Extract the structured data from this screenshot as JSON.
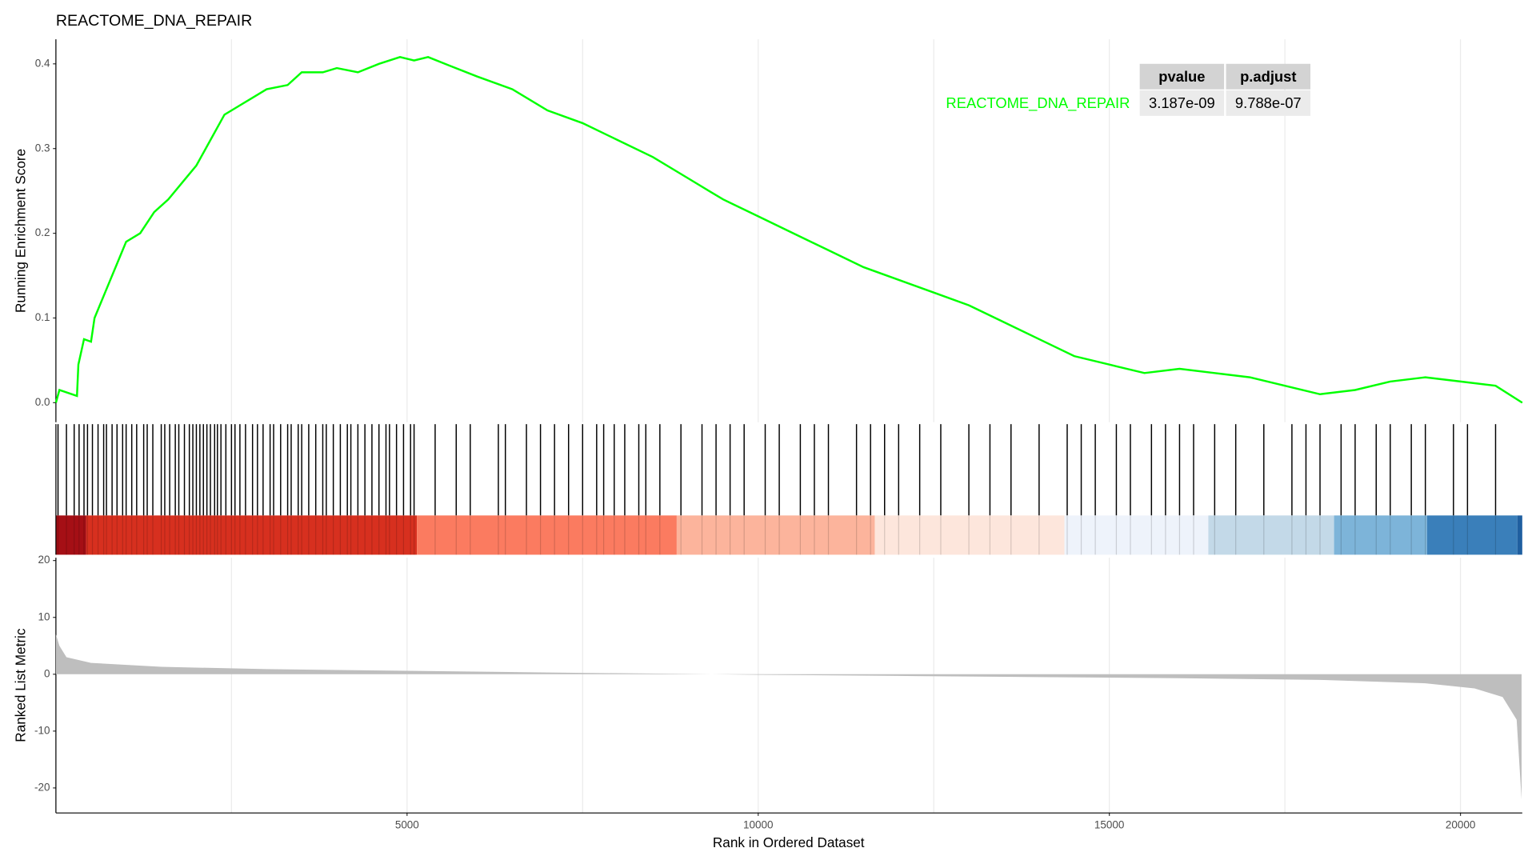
{
  "chart_data": [
    {
      "type": "line",
      "title": "REACTOME_DNA_REPAIR",
      "y_label": "Running Enrichment Score",
      "x": [
        0,
        50,
        300,
        320,
        400,
        500,
        550,
        700,
        900,
        1000,
        1200,
        1400,
        1600,
        1800,
        2000,
        2200,
        2400,
        2600,
        2800,
        3000,
        3300,
        3500,
        3800,
        4000,
        4300,
        4600,
        4900,
        5100,
        5300,
        5600,
        6000,
        6500,
        7000,
        7500,
        8000,
        8500,
        9000,
        9500,
        10000,
        10500,
        11000,
        11500,
        12000,
        12500,
        13000,
        13500,
        14000,
        14500,
        15000,
        15500,
        16000,
        16500,
        17000,
        17500,
        18000,
        18500,
        19000,
        19500,
        20000,
        20500,
        20880
      ],
      "series": [
        {
          "name": "REACTOME_DNA_REPAIR",
          "color": "#00ff00",
          "values": [
            0,
            0.015,
            0.008,
            0.045,
            0.075,
            0.072,
            0.1,
            0.13,
            0.17,
            0.19,
            0.2,
            0.225,
            0.24,
            0.26,
            0.28,
            0.31,
            0.34,
            0.35,
            0.36,
            0.37,
            0.375,
            0.39,
            0.39,
            0.395,
            0.39,
            0.4,
            0.408,
            0.404,
            0.408,
            0.398,
            0.385,
            0.37,
            0.345,
            0.33,
            0.31,
            0.29,
            0.265,
            0.24,
            0.22,
            0.2,
            0.18,
            0.16,
            0.145,
            0.13,
            0.115,
            0.095,
            0.075,
            0.055,
            0.045,
            0.035,
            0.04,
            0.035,
            0.03,
            0.02,
            0.01,
            0.015,
            0.025,
            0.03,
            0.025,
            0.02,
            0
          ]
        }
      ],
      "xlim": [
        0,
        20880
      ],
      "ylim": [
        -0.023,
        0.429
      ],
      "yticks": [
        {
          "value": 0,
          "label": "0.0"
        },
        0.1,
        0.2,
        0.3,
        0.4
      ],
      "x_grid": [
        2500,
        5000,
        7500,
        10000,
        12500,
        15000,
        17500,
        20000
      ],
      "table": {
        "columns": [
          "pvalue",
          "p.adjust"
        ],
        "rows": [
          [
            "3.187e-09",
            "9.788e-07"
          ]
        ]
      }
    },
    {
      "type": "rug",
      "color": "#000000",
      "xlim": [
        0,
        20880
      ],
      "x": [
        30,
        150,
        260,
        330,
        400,
        450,
        520,
        600,
        680,
        720,
        800,
        870,
        950,
        1000,
        1080,
        1150,
        1250,
        1300,
        1380,
        1500,
        1550,
        1620,
        1700,
        1750,
        1830,
        1900,
        1950,
        2000,
        2050,
        2100,
        2150,
        2200,
        2260,
        2300,
        2350,
        2420,
        2500,
        2550,
        2620,
        2700,
        2800,
        2870,
        2950,
        3050,
        3100,
        3200,
        3300,
        3350,
        3450,
        3500,
        3600,
        3700,
        3800,
        3850,
        3950,
        4050,
        4150,
        4200,
        4300,
        4400,
        4500,
        4600,
        4700,
        4750,
        4850,
        4950,
        5050,
        5100,
        5400,
        5700,
        5900,
        6300,
        6400,
        6700,
        6900,
        7100,
        7300,
        7500,
        7700,
        7800,
        7950,
        8100,
        8300,
        8400,
        8600,
        8900,
        9200,
        9400,
        9600,
        9800,
        10100,
        10300,
        10600,
        10800,
        11000,
        11400,
        11600,
        11800,
        12000,
        12300,
        12600,
        13000,
        13300,
        13600,
        14000,
        14400,
        14600,
        14800,
        15100,
        15300,
        15600,
        15800,
        16000,
        16200,
        16500,
        16800,
        17200,
        17600,
        17800,
        18000,
        18300,
        18500,
        18800,
        19000,
        19300,
        19500,
        19900,
        20100,
        20500
      ],
      "color_bar": {
        "bins": [
          0,
          433,
          5140,
          8840,
          11660,
          14360,
          16410,
          18200,
          19525,
          20810,
          20880
        ],
        "colors": [
          "#a50f15",
          "#d7301f",
          "#fb7b60",
          "#fcb49c",
          "#fde6dc",
          "#eef3fb",
          "#c3d9e8",
          "#7db4d9",
          "#3a7fba",
          "#1f5fa0"
        ]
      }
    },
    {
      "type": "area",
      "y_label": "Ranked List Metric",
      "x_label": "Rank in Ordered Dataset",
      "color": "#bebebe",
      "x": [
        0,
        50,
        150,
        500,
        1500,
        3000,
        5000,
        7000,
        9000,
        10000,
        12000,
        14000,
        16000,
        18000,
        19500,
        20200,
        20600,
        20800,
        20870
      ],
      "values": [
        7,
        5,
        3,
        2,
        1.3,
        0.9,
        0.6,
        0.3,
        0.05,
        -0.1,
        -0.3,
        -0.5,
        -0.7,
        -1,
        -1.6,
        -2.5,
        -4,
        -8,
        -22
      ],
      "xlim": [
        0,
        20880
      ],
      "ylim": [
        -24.4,
        20.5
      ],
      "yticks": [
        -20,
        -10,
        0,
        10,
        20
      ],
      "xticks": [
        5000,
        10000,
        15000,
        20000
      ],
      "x_grid": [
        2500,
        5000,
        7500,
        10000,
        12500,
        15000,
        17500,
        20000
      ]
    }
  ]
}
